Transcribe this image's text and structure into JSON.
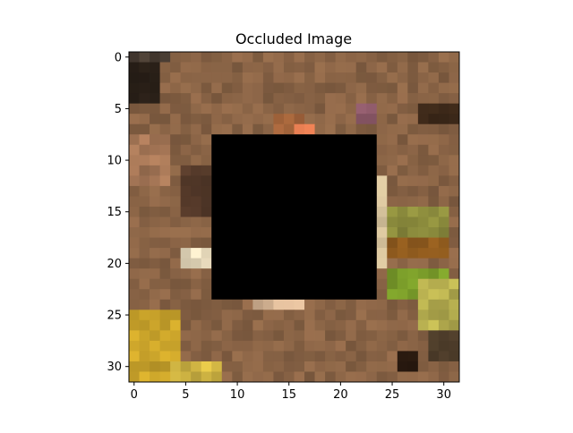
{
  "figure": {
    "title": "Occluded Image"
  },
  "chart_data": {
    "type": "heatmap",
    "title": "Occluded Image",
    "xlabel": "",
    "ylabel": "",
    "grid": false,
    "legend": false,
    "image_size": [
      32,
      32
    ],
    "xlim": [
      -0.5,
      31.5
    ],
    "ylim": [
      31.5,
      -0.5
    ],
    "x_ticks": [
      0,
      5,
      10,
      15,
      20,
      25,
      30
    ],
    "y_ticks": [
      0,
      5,
      10,
      15,
      20,
      25,
      30
    ],
    "occlusion": {
      "x_range": [
        8,
        23
      ],
      "y_range": [
        8,
        23
      ],
      "color": "#000000"
    },
    "base_color": "#8a6446",
    "color_regions": [
      {
        "x": [
          0,
          2
        ],
        "y": [
          0,
          4
        ],
        "color": "#2a2018"
      },
      {
        "x": [
          0,
          3
        ],
        "y": [
          0,
          0
        ],
        "color": "#4a3e34"
      },
      {
        "x": [
          28,
          31
        ],
        "y": [
          5,
          6
        ],
        "color": "#3a2718"
      },
      {
        "x": [
          14,
          16
        ],
        "y": [
          6,
          7
        ],
        "color": "#a0623a"
      },
      {
        "x": [
          16,
          17
        ],
        "y": [
          7,
          7
        ],
        "color": "#e07a50"
      },
      {
        "x": [
          22,
          23
        ],
        "y": [
          5,
          6
        ],
        "color": "#8e5a6a"
      },
      {
        "x": [
          0,
          3
        ],
        "y": [
          8,
          12
        ],
        "color": "#a57656"
      },
      {
        "x": [
          5,
          7
        ],
        "y": [
          11,
          15
        ],
        "color": "#553a2a"
      },
      {
        "x": [
          5,
          7
        ],
        "y": [
          19,
          20
        ],
        "color": "#efe1c2"
      },
      {
        "x": [
          24,
          24
        ],
        "y": [
          12,
          20
        ],
        "color": "#dcc8a0"
      },
      {
        "x": [
          25,
          30
        ],
        "y": [
          15,
          17
        ],
        "color": "#8e8e3e"
      },
      {
        "x": [
          25,
          30
        ],
        "y": [
          18,
          19
        ],
        "color": "#8e5a1e"
      },
      {
        "x": [
          25,
          30
        ],
        "y": [
          21,
          23
        ],
        "color": "#7a9c2a"
      },
      {
        "x": [
          28,
          31
        ],
        "y": [
          22,
          26
        ],
        "color": "#b8b050"
      },
      {
        "x": [
          12,
          16
        ],
        "y": [
          24,
          24
        ],
        "color": "#d6b494"
      },
      {
        "x": [
          0,
          4
        ],
        "y": [
          25,
          31
        ],
        "color": "#c8a22a"
      },
      {
        "x": [
          4,
          8
        ],
        "y": [
          30,
          31
        ],
        "color": "#d4b844"
      },
      {
        "x": [
          26,
          27
        ],
        "y": [
          29,
          30
        ],
        "color": "#2a1a10"
      },
      {
        "x": [
          29,
          31
        ],
        "y": [
          27,
          29
        ],
        "color": "#4a3a28"
      }
    ]
  }
}
